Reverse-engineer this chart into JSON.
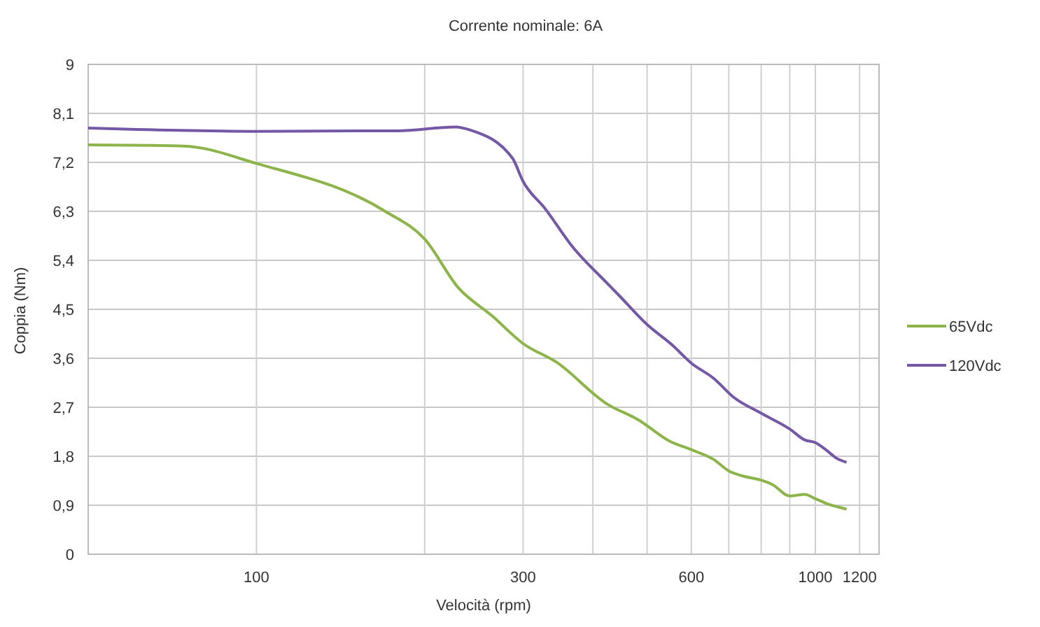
{
  "chart_data": {
    "type": "line",
    "title": "Corrente nominale: 6A",
    "xlabel": "Velocità (rpm)",
    "ylabel": "Coppia (Nm)",
    "log": "x",
    "xlim": [
      50,
      1300
    ],
    "xticks": [
      100,
      {
        "value": 200,
        "label": null
      },
      300,
      {
        "value": 400,
        "label": null
      },
      {
        "value": 500,
        "label": null
      },
      600,
      {
        "value": 700,
        "label": null
      },
      {
        "value": 800,
        "label": null
      },
      {
        "value": 900,
        "label": null
      },
      1000,
      1200
    ],
    "ylim": [
      0,
      9
    ],
    "yticks": [
      0,
      {
        "value": 0.9,
        "label": "0,9"
      },
      {
        "value": 1.8,
        "label": "1,8"
      },
      {
        "value": 2.7,
        "label": "2,7"
      },
      {
        "value": 3.6,
        "label": "3,6"
      },
      {
        "value": 4.5,
        "label": "4,5"
      },
      {
        "value": 5.4,
        "label": "5,4"
      },
      {
        "value": 6.3,
        "label": "6,3"
      },
      {
        "value": 7.2,
        "label": "7,2"
      },
      {
        "value": 8.1,
        "label": "8,1"
      },
      9
    ],
    "grid": true,
    "legend": "right",
    "marker": "none",
    "line_style": "solid",
    "series": [
      {
        "name": "65Vdc",
        "color": "#8db44a",
        "x": [
          50,
          74,
          100,
          170,
          200,
          230,
          264,
          300,
          344,
          424,
          484,
          548,
          600,
          658,
          700,
          740,
          800,
          838,
          900,
          957,
          1000,
          1054,
          1137
        ],
        "values": [
          7.52,
          7.5,
          7.18,
          6.3,
          5.79,
          4.89,
          4.38,
          3.87,
          3.53,
          2.76,
          2.46,
          2.08,
          1.92,
          1.74,
          1.53,
          1.44,
          1.36,
          1.28,
          1.07,
          1.1,
          1.02,
          0.92,
          0.83
        ]
      },
      {
        "name": "120Vdc",
        "color": "#7457a5",
        "x": [
          50,
          100,
          179,
          227,
          242,
          287,
          300,
          329,
          367,
          424,
          444,
          500,
          555,
          600,
          658,
          713,
          800,
          900,
          957,
          1000,
          1044,
          1093,
          1137
        ],
        "values": [
          7.83,
          7.77,
          7.78,
          7.85,
          7.79,
          7.28,
          6.85,
          6.34,
          5.66,
          4.98,
          4.77,
          4.22,
          3.84,
          3.51,
          3.23,
          2.89,
          2.59,
          2.3,
          2.1,
          2.05,
          1.92,
          1.76,
          1.69
        ]
      }
    ]
  }
}
